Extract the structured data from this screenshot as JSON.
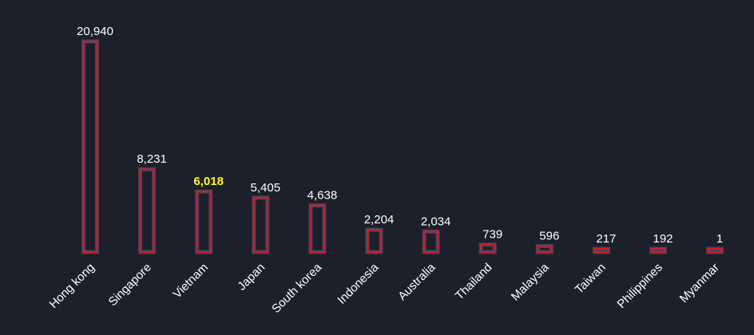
{
  "chart_data": {
    "type": "bar",
    "categories": [
      "Hong kong",
      "Singapore",
      "Vietnam",
      "Japan",
      "South korea",
      "Indonesia",
      "Australia",
      "Thailand",
      "Malaysia",
      "Taiwan",
      "Philippines",
      "Myanmar"
    ],
    "values": [
      20940,
      8231,
      6018,
      5405,
      4638,
      2204,
      2034,
      739,
      596,
      217,
      192,
      1
    ],
    "value_labels": [
      "20,940",
      "8,231",
      "6,018",
      "5,405",
      "4,638",
      "2,204",
      "2,034",
      "739",
      "596",
      "217",
      "192",
      "1"
    ],
    "highlighted_category": "Vietnam",
    "ylim": [
      0,
      21000
    ],
    "grid": false,
    "legend": "none",
    "colors": {
      "background": "#1b202a",
      "bar_outline": "#e0141e",
      "bar_glow": "#5a6a8c",
      "label": "#ffffff",
      "highlight_label": "#ffff00"
    }
  }
}
